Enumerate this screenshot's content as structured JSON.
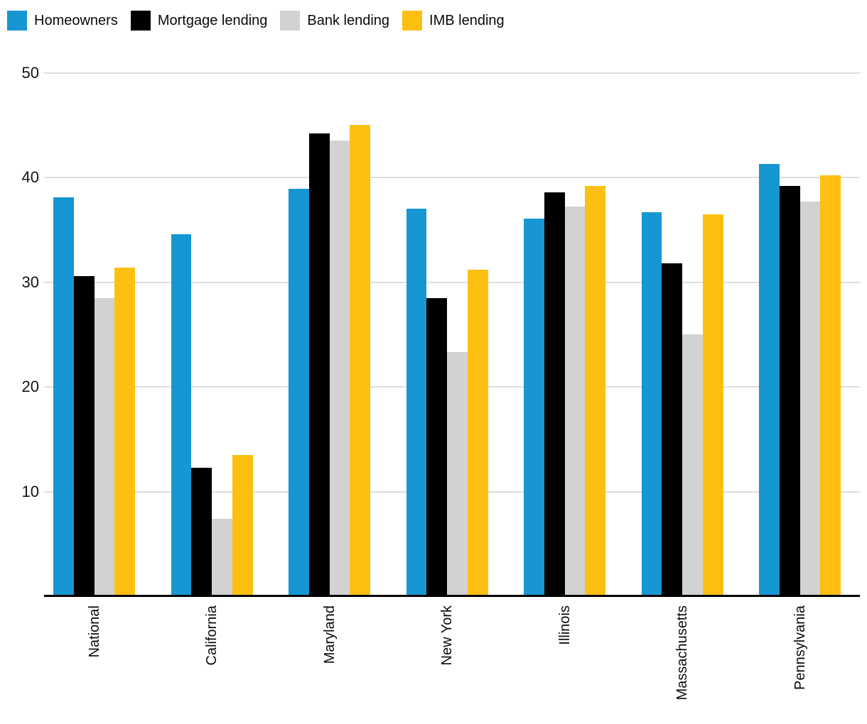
{
  "chart_data": {
    "type": "bar",
    "title": "",
    "xlabel": "",
    "ylabel": "",
    "categories": [
      "National",
      "California",
      "Maryland",
      "New York",
      "Illinois",
      "Massachusetts",
      "Pennsylvania"
    ],
    "series": [
      {
        "name": "Homeowners",
        "color": "#1696d2",
        "values": [
          38.1,
          34.6,
          38.9,
          37.0,
          36.1,
          36.7,
          41.3
        ]
      },
      {
        "name": "Mortgage lending",
        "color": "#000000",
        "values": [
          30.6,
          12.3,
          44.2,
          28.5,
          38.6,
          31.8,
          39.2
        ]
      },
      {
        "name": "Bank lending",
        "color": "#d2d2d2",
        "values": [
          28.5,
          7.4,
          43.5,
          23.3,
          37.2,
          25.0,
          37.7
        ]
      },
      {
        "name": "IMB lending",
        "color": "#fdbf11",
        "values": [
          31.4,
          13.5,
          45.0,
          31.2,
          39.2,
          36.5,
          40.2
        ]
      }
    ],
    "ylim": [
      0,
      50
    ],
    "yticks": [
      10,
      20,
      30,
      40,
      50
    ],
    "grid": true,
    "legend_position": "top-left",
    "axis_color": "#000000",
    "gridline_color": "#dedede"
  }
}
